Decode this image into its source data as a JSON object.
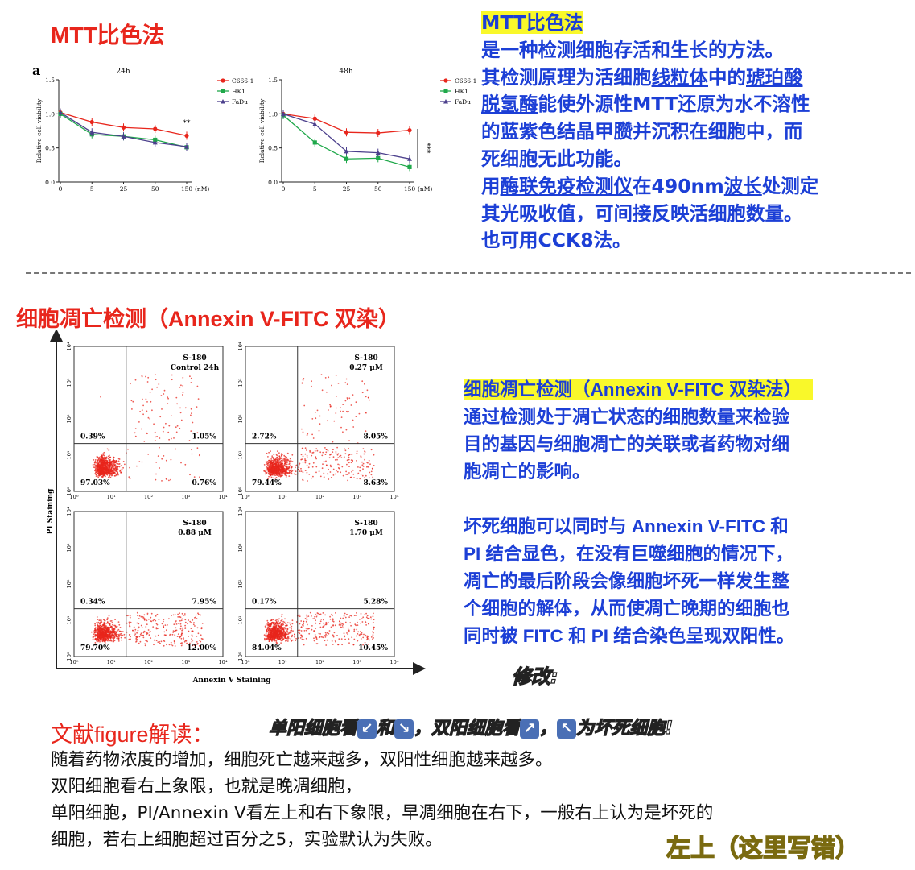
{
  "mtt": {
    "title": "MTT比色法",
    "panel_label": "a",
    "chart_24h_title": "24h",
    "chart_48h_title": "48h",
    "ylabel": "Relative cell viability",
    "unit_label": "(nM)",
    "sig_24h": "**",
    "sig_48h": "***",
    "desc": {
      "heading": "MTT比色法",
      "l1": "是一种检测细胞存活和生长的方法。",
      "l2a": "其检测原理为活细胞",
      "l2b": "线粒体",
      "l2c": "中的",
      "l2d": "琥珀酸",
      "l3a": "脱氢酶",
      "l3b": "能使外源性MTT还原为水不溶性",
      "l4": "的蓝紫色结晶甲臜并沉积在细胞中，而",
      "l5": "死细胞无此功能。",
      "l6a": "用",
      "l6b": "酶联免疫检测仪",
      "l6c": "在490nm",
      "l6d": "波长",
      "l6e": "处测定",
      "l7": "其光吸收值，可间接反映活细胞数量。",
      "l8": "也可用CCK8法。"
    }
  },
  "chart_data": [
    {
      "type": "line",
      "title": "24h",
      "categories": [
        "0",
        "5",
        "25",
        "50",
        "150"
      ],
      "ylabel": "Relative cell viability",
      "xlabel": "(nM)",
      "ylim": [
        0,
        1.5
      ],
      "yticks": [
        "0.0",
        "0.5",
        "1.0",
        "1.5"
      ],
      "series": [
        {
          "name": "C666-1",
          "color": "#e8261c",
          "marker": "circle",
          "values": [
            1.02,
            0.88,
            0.8,
            0.78,
            0.68
          ]
        },
        {
          "name": "HK1",
          "color": "#1fa84a",
          "marker": "square",
          "values": [
            1.0,
            0.7,
            0.67,
            0.62,
            0.51
          ]
        },
        {
          "name": "FaDu",
          "color": "#4b3f8c",
          "marker": "triangle",
          "values": [
            1.02,
            0.73,
            0.67,
            0.58,
            0.52
          ]
        }
      ],
      "annotation": "**"
    },
    {
      "type": "line",
      "title": "48h",
      "categories": [
        "0",
        "5",
        "25",
        "50",
        "150"
      ],
      "ylabel": "Relative cell viability",
      "xlabel": "(nM)",
      "ylim": [
        0,
        1.5
      ],
      "yticks": [
        "0.0",
        "0.5",
        "1.0",
        "1.5"
      ],
      "series": [
        {
          "name": "C666-1",
          "color": "#e8261c",
          "marker": "circle",
          "values": [
            1.0,
            0.93,
            0.73,
            0.72,
            0.76
          ]
        },
        {
          "name": "HK1",
          "color": "#1fa84a",
          "marker": "square",
          "values": [
            0.98,
            0.58,
            0.34,
            0.35,
            0.22
          ]
        },
        {
          "name": "FaDu",
          "color": "#4b3f8c",
          "marker": "triangle",
          "values": [
            1.0,
            0.85,
            0.45,
            0.43,
            0.34
          ]
        }
      ],
      "annotation": "***"
    }
  ],
  "apoptosis": {
    "title": "细胞凋亡检测（Annexin V-FITC 双染）",
    "y_axis_label": "PI Staining",
    "x_axis_label": "Annexin V Staining",
    "ticks": [
      "10⁰",
      "10¹",
      "10²",
      "10³",
      "10⁴"
    ],
    "panels": [
      {
        "name": "S-180",
        "condition": "Control 24h",
        "ul": "0.39%",
        "ur": "1.05%",
        "ll": "97.03%",
        "lr": "0.76%"
      },
      {
        "name": "S-180",
        "condition": "0.27 μM",
        "ul": "2.72%",
        "ur": "8.05%",
        "ll": "79.44%",
        "lr": "8.63%"
      },
      {
        "name": "S-180",
        "condition": "0.88 μM",
        "ul": "0.34%",
        "ur": "7.95%",
        "ll": "79.70%",
        "lr": "12.00%"
      },
      {
        "name": "S-180",
        "condition": "1.70 μM",
        "ul": "0.17%",
        "ur": "5.28%",
        "ll": "84.04%",
        "lr": "10.45%"
      }
    ],
    "desc": {
      "heading": "细胞凋亡检测（Annexin V-FITC 双染法）",
      "p1": [
        "通过检测处于凋亡状态的细胞数量来检验",
        "目的基因与细胞凋亡的关联或者药物对细",
        "胞凋亡的影响。"
      ],
      "p2": [
        "坏死细胞可以同时与 Annexin V-FITC 和",
        "PI 结合显色，在没有巨噬细胞的情况下，",
        "凋亡的最后阶段会像细胞坏死一样发生整",
        "个细胞的解体，从而使凋亡晚期的细胞也",
        "同时被 FITC 和 PI 结合染色呈现双阳性。"
      ]
    },
    "edit_note": "修改:"
  },
  "interpretation": {
    "title": "文献figure解读：",
    "note_a": "单阳细胞看",
    "note_b": "和",
    "note_c": "，双阳细胞看",
    "note_d": "，",
    "note_e": "为坏死细胞!",
    "arrows": [
      "↙",
      "↘",
      "↗",
      "↖"
    ],
    "l1": "随着药物浓度的增加，细胞死亡越来越多，双阳性细胞越来越多。",
    "l2": "双阳细胞看右上象限，也就是晚凋细胞，",
    "l3": "单阳细胞，PI/Annexin V看左上和右下象限，早凋细胞在右下，一般右上认为是坏死的",
    "l4": "细胞，若右上细胞超过百分之5，实验默认为失败。",
    "correction": "左上（这里写错）"
  }
}
